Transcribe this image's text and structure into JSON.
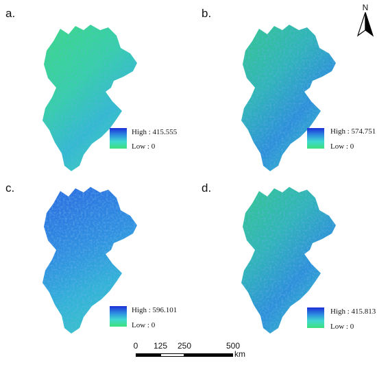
{
  "panels": [
    {
      "label": "a.",
      "high": "High : 415.555",
      "low": "Low : 0",
      "tone": "green"
    },
    {
      "label": "b.",
      "high": "High : 574.751",
      "low": "Low : 0",
      "tone": "mixed"
    },
    {
      "label": "c.",
      "high": "High : 596.101",
      "low": "Low : 0",
      "tone": "blue"
    },
    {
      "label": "d.",
      "high": "High : 415.813",
      "low": "Low : 0",
      "tone": "mixed"
    }
  ],
  "north_arrow": {
    "letter": "N"
  },
  "scale_bar": {
    "ticks": [
      "0",
      "125",
      "250",
      "500"
    ],
    "unit": "km"
  },
  "colors": {
    "high": "#1b2fd6",
    "mid": "#3fd8d0",
    "low": "#3de07c"
  }
}
